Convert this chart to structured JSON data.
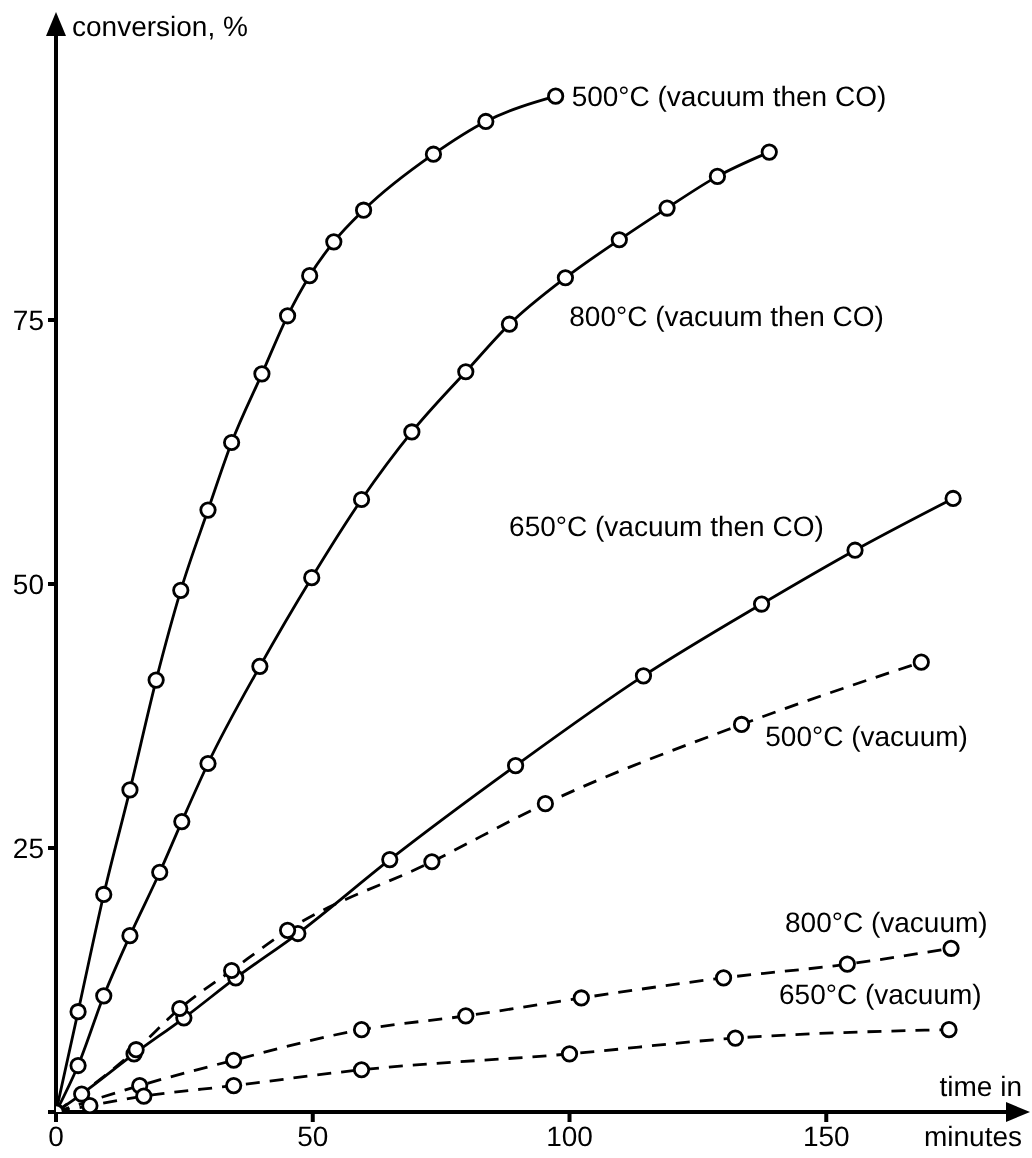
{
  "chart_data": {
    "type": "line",
    "xlabel": "time in minutes",
    "ylabel": "conversion, %",
    "xlim": [
      0,
      185
    ],
    "ylim": [
      0,
      100
    ],
    "xticks": [
      0,
      50,
      100,
      150
    ],
    "yticks": [
      {
        "value": 0,
        "label": null
      },
      25,
      50,
      75
    ],
    "marker": "circle",
    "series": [
      {
        "name": "500°C (vacuum then CO)",
        "color": "#000000",
        "line_style": "solid",
        "x": [
          0,
          4.3,
          9.3,
          14.4,
          19.5,
          24.3,
          29.6,
          34.2,
          40.1,
          45.1,
          49.4,
          54.1,
          59.9,
          73.5,
          83.7,
          97.3
        ],
        "values": [
          0,
          9.5,
          20.6,
          30.5,
          40.9,
          49.4,
          57,
          63.4,
          69.9,
          75.4,
          79.2,
          82.4,
          85.4,
          90.7,
          93.8,
          96.2
        ]
      },
      {
        "name": "800°C (vacuum then CO)",
        "color": "#000000",
        "line_style": "solid",
        "x": [
          0,
          4.3,
          9.3,
          14.4,
          20.2,
          24.5,
          29.6,
          39.7,
          49.8,
          59.5,
          69.3,
          79.8,
          88.3,
          99.2,
          109.7,
          119,
          128.8,
          138.9
        ],
        "values": [
          0,
          4.4,
          11,
          16.7,
          22.7,
          27.5,
          33,
          42.2,
          50.6,
          58,
          64.4,
          70.1,
          74.6,
          79,
          82.6,
          85.6,
          88.6,
          90.9
        ]
      },
      {
        "name": "650°C (vacuum then CO)",
        "color": "#000000",
        "line_style": "solid",
        "x": [
          0,
          5,
          15.2,
          24.9,
          35,
          47.1,
          65,
          89.5,
          114.4,
          137.4,
          155.6,
          174.7
        ],
        "values": [
          0,
          1.7,
          5.5,
          8.9,
          12.7,
          16.9,
          23.9,
          32.8,
          41.3,
          48.1,
          53.2,
          58.1
        ]
      },
      {
        "name": "500°C (vacuum)",
        "color": "#000000",
        "line_style": "dashed",
        "x": [
          0,
          15.6,
          24.1,
          34.2,
          45.1,
          73.2,
          95.3,
          133.5,
          168.5
        ],
        "values": [
          0,
          5.9,
          9.8,
          13.4,
          17.2,
          23.7,
          29.2,
          36.7,
          42.6
        ]
      },
      {
        "name": "800°C (vacuum)",
        "color": "#000000",
        "line_style": "dashed",
        "x": [
          0,
          16.3,
          34.6,
          59.5,
          79.8,
          102.3,
          130,
          154.1,
          174.3
        ],
        "values": [
          0,
          2.5,
          4.9,
          7.8,
          9.1,
          10.8,
          12.7,
          14,
          15.5
        ]
      },
      {
        "name": "650°C (vacuum)",
        "color": "#000000",
        "line_style": "dashed",
        "x": [
          0,
          6.6,
          17.1,
          34.6,
          59.5,
          100,
          132.3,
          173.9
        ],
        "values": [
          0,
          0.6,
          1.5,
          2.5,
          4,
          5.5,
          7,
          7.8
        ]
      }
    ]
  }
}
